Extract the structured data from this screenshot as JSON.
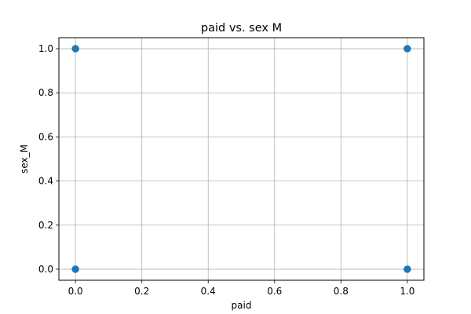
{
  "chart_data": {
    "type": "scatter",
    "title": "paid vs. sex M",
    "xlabel": "paid",
    "ylabel": "sex_M",
    "xlim": [
      -0.05,
      1.05
    ],
    "ylim": [
      -0.05,
      1.05
    ],
    "xticks": [
      0.0,
      0.2,
      0.4,
      0.6,
      0.8,
      1.0
    ],
    "xtick_labels": [
      "0.0",
      "0.2",
      "0.4",
      "0.6",
      "0.8",
      "1.0"
    ],
    "yticks": [
      0.0,
      0.2,
      0.4,
      0.6,
      0.8,
      1.0
    ],
    "ytick_labels": [
      "0.0",
      "0.2",
      "0.4",
      "0.6",
      "0.8",
      "1.0"
    ],
    "grid": true,
    "series": [
      {
        "color": "#1f77b4",
        "points": [
          {
            "x": 0,
            "y": 1
          },
          {
            "x": 1,
            "y": 1
          },
          {
            "x": 0,
            "y": 0
          },
          {
            "x": 1,
            "y": 0
          }
        ]
      }
    ]
  }
}
